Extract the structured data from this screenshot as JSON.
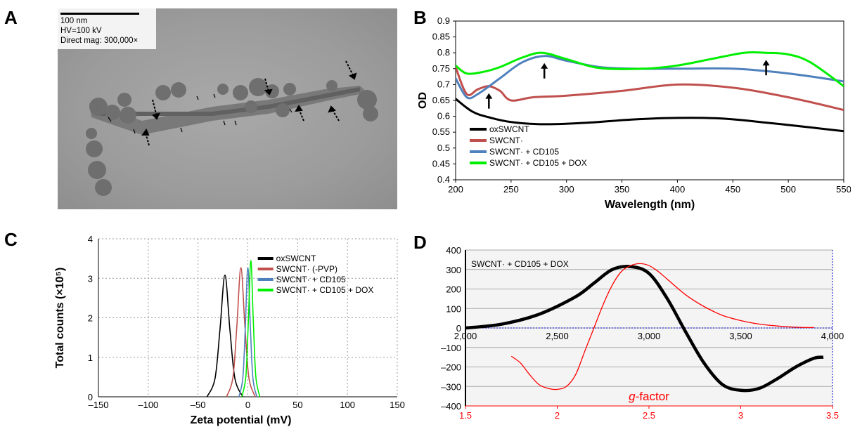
{
  "panels": {
    "a": {
      "letter": "A",
      "scale_text": "100 nm",
      "hv_text": "HV=100 kV",
      "mag_text": "Direct mag: 300,000×"
    },
    "b": {
      "letter": "B"
    },
    "c": {
      "letter": "C"
    },
    "d": {
      "letter": "D"
    }
  },
  "chart_data": [
    {
      "panel": "B",
      "type": "line",
      "xlabel": "Wavelength (nm)",
      "ylabel": "OD",
      "xlim": [
        200,
        550
      ],
      "ylim": [
        0.4,
        0.9
      ],
      "xticks": [
        "200",
        "250",
        "300",
        "350",
        "400",
        "450",
        "500",
        "550"
      ],
      "yticks": [
        "0.4",
        "0.45",
        "0.5",
        "0.55",
        "0.6",
        "0.65",
        "0.7",
        "0.75",
        "0.8",
        "0.85",
        "0.9"
      ],
      "legend_position": "bottom-left",
      "grid": false,
      "series": [
        {
          "name": "oxSWCNT",
          "color": "#000000",
          "x": [
            200,
            215,
            230,
            250,
            280,
            320,
            360,
            400,
            440,
            480,
            520,
            550
          ],
          "y": [
            0.655,
            0.615,
            0.597,
            0.582,
            0.575,
            0.58,
            0.59,
            0.595,
            0.593,
            0.58,
            0.565,
            0.553
          ]
        },
        {
          "name": "SWCNT·",
          "color": "#c0504d",
          "x": [
            200,
            210,
            220,
            230,
            240,
            250,
            270,
            300,
            350,
            400,
            450,
            500,
            550
          ],
          "y": [
            0.755,
            0.67,
            0.685,
            0.695,
            0.68,
            0.65,
            0.66,
            0.665,
            0.68,
            0.7,
            0.69,
            0.66,
            0.62
          ]
        },
        {
          "name": "SWCNT· + CD105",
          "color": "#4f81bd",
          "x": [
            200,
            210,
            220,
            240,
            260,
            280,
            300,
            330,
            360,
            400,
            450,
            500,
            550
          ],
          "y": [
            0.72,
            0.66,
            0.67,
            0.72,
            0.77,
            0.79,
            0.775,
            0.755,
            0.75,
            0.75,
            0.75,
            0.735,
            0.71
          ]
        },
        {
          "name": "SWCNT· + CD105 + DOX",
          "color": "#00ee00",
          "x": [
            200,
            210,
            225,
            240,
            260,
            278,
            300,
            330,
            370,
            400,
            430,
            460,
            480,
            500,
            520,
            550
          ],
          "y": [
            0.76,
            0.735,
            0.74,
            0.755,
            0.785,
            0.8,
            0.78,
            0.752,
            0.75,
            0.76,
            0.78,
            0.8,
            0.8,
            0.795,
            0.77,
            0.695
          ]
        }
      ],
      "arrow_x": [
        230,
        280,
        480
      ]
    },
    {
      "panel": "C",
      "type": "line",
      "xlabel": "Zeta potential (mV)",
      "ylabel": "Total counts (×10⁵)",
      "xlim": [
        -150,
        150
      ],
      "ylim": [
        0,
        4
      ],
      "xticks": [
        "–150",
        "–100",
        "–50",
        "0",
        "50",
        "100",
        "150"
      ],
      "yticks": [
        "0",
        "1",
        "2",
        "3",
        "4"
      ],
      "grid": true,
      "legend_position": "top-right",
      "series": [
        {
          "name": "oxSWCNT",
          "color": "#000000",
          "center": -23,
          "peak": 3.08,
          "halfwidth": 10
        },
        {
          "name": "SWCNT· (-PVP)",
          "color": "#c0504d",
          "center": -7,
          "peak": 3.27,
          "halfwidth": 8
        },
        {
          "name": "SWCNT· + CD105",
          "color": "#4f81bd",
          "center": 0,
          "peak": 3.27,
          "halfwidth": 5
        },
        {
          "name": "SWCNT· + CD105 + DOX",
          "color": "#00ee00",
          "center": 3,
          "peak": 3.45,
          "halfwidth": 5
        }
      ]
    },
    {
      "panel": "D",
      "type": "line",
      "annotation": "SWCNT· + CD105 + DOX",
      "xlabel": "g-factor",
      "xlabel_italic": "g",
      "xlabel_rest": "-factor",
      "ylim": [
        -400,
        400
      ],
      "yticks": [
        "400",
        "300",
        "200",
        "100",
        "0",
        "–100",
        "–200",
        "–300",
        "–400"
      ],
      "x_top_range": [
        2000,
        4000
      ],
      "x_top_ticks": [
        "2,000",
        "2,500",
        "3,000",
        "3,500",
        "4,000"
      ],
      "x_bottom_range": [
        1.5,
        3.5
      ],
      "x_bottom_ticks": [
        "1.5",
        "2",
        "2.5",
        "3",
        "3.5"
      ],
      "grid": true,
      "series": [
        {
          "axis": "top",
          "color": "#000000",
          "x": [
            2000,
            2200,
            2400,
            2600,
            2700,
            2800,
            2900,
            3000,
            3100,
            3200,
            3300,
            3400,
            3500,
            3600,
            3700,
            3800,
            3900,
            3950
          ],
          "y": [
            0,
            20,
            70,
            160,
            230,
            300,
            315,
            280,
            150,
            -20,
            -180,
            -290,
            -320,
            -310,
            -260,
            -200,
            -155,
            -150
          ]
        },
        {
          "axis": "bottom",
          "color": "#ff0000",
          "x": [
            1.75,
            1.8,
            1.85,
            1.9,
            1.95,
            2.0,
            2.05,
            2.1,
            2.15,
            2.2,
            2.25,
            2.3,
            2.35,
            2.4,
            2.45,
            2.5,
            2.55,
            2.6,
            2.7,
            2.8,
            2.9,
            3.0,
            3.1,
            3.2,
            3.3,
            3.4
          ],
          "y": [
            -145,
            -180,
            -240,
            -290,
            -310,
            -315,
            -300,
            -240,
            -120,
            0,
            120,
            220,
            290,
            320,
            330,
            320,
            290,
            250,
            170,
            110,
            65,
            38,
            20,
            10,
            4,
            2
          ]
        }
      ]
    }
  ]
}
